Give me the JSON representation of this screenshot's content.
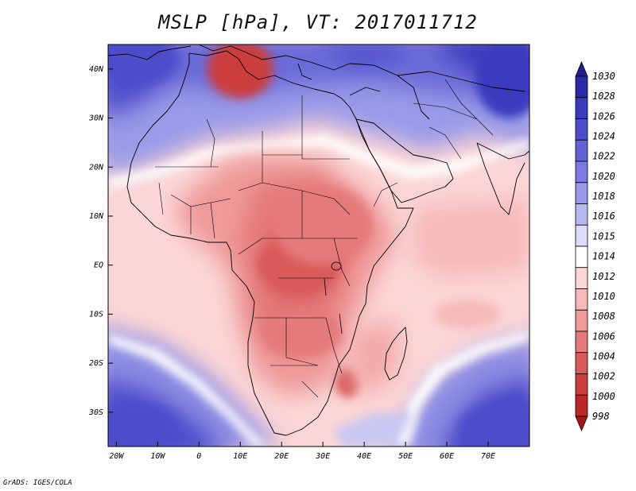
{
  "title": "MSLP [hPa], VT: 2017011712",
  "credit": "GrADS: IGES/COLA",
  "map": {
    "lon_range": [
      -22,
      80
    ],
    "lat_range": [
      -37,
      45
    ],
    "lat_ticks": [
      {
        "value": 40,
        "label": "40N"
      },
      {
        "value": 30,
        "label": "30N"
      },
      {
        "value": 20,
        "label": "20N"
      },
      {
        "value": 10,
        "label": "10N"
      },
      {
        "value": 0,
        "label": "EQ"
      },
      {
        "value": -10,
        "label": "10S"
      },
      {
        "value": -20,
        "label": "20S"
      },
      {
        "value": -30,
        "label": "30S"
      }
    ],
    "lon_ticks": [
      {
        "value": -20,
        "label": "20W"
      },
      {
        "value": -10,
        "label": "10W"
      },
      {
        "value": 0,
        "label": "0"
      },
      {
        "value": 10,
        "label": "10E"
      },
      {
        "value": 20,
        "label": "20E"
      },
      {
        "value": 30,
        "label": "30E"
      },
      {
        "value": 40,
        "label": "40E"
      },
      {
        "value": 50,
        "label": "50E"
      },
      {
        "value": 60,
        "label": "60E"
      },
      {
        "value": 70,
        "label": "70E"
      }
    ]
  },
  "colorbar": {
    "levels": [
      {
        "label": "1030",
        "color": "#1e1e8c"
      },
      {
        "label": "1028",
        "color": "#2a2aa8"
      },
      {
        "label": "1026",
        "color": "#3a3abf"
      },
      {
        "label": "1024",
        "color": "#4d4dcc"
      },
      {
        "label": "1022",
        "color": "#6363d6"
      },
      {
        "label": "1020",
        "color": "#7a7ae0"
      },
      {
        "label": "1018",
        "color": "#9797e8"
      },
      {
        "label": "1016",
        "color": "#b8b8f0"
      },
      {
        "label": "1015",
        "color": "#dcdcf8"
      },
      {
        "label": "1014",
        "color": "#ffffff"
      },
      {
        "label": "1012",
        "color": "#fbd6d6"
      },
      {
        "label": "1010",
        "color": "#f6b9b9"
      },
      {
        "label": "1008",
        "color": "#ef9a9a"
      },
      {
        "label": "1006",
        "color": "#e57a7a"
      },
      {
        "label": "1004",
        "color": "#d85a5a"
      },
      {
        "label": "1002",
        "color": "#cc3e3e"
      },
      {
        "label": "1000",
        "color": "#bb2828"
      },
      {
        "label": "998",
        "color": "#a51818"
      }
    ]
  },
  "pressure_centers": [
    {
      "lon": 10,
      "lat": 40,
      "value": 1002,
      "extent_lon": 8,
      "extent_lat": 6
    },
    {
      "lon": 24,
      "lat": 0,
      "value": 1004,
      "extent_lon": 10,
      "extent_lat": 6
    },
    {
      "lon": 36,
      "lat": -24,
      "value": 1004,
      "extent_lon": 3,
      "extent_lat": 3
    },
    {
      "lon": 25,
      "lat": -14,
      "value": 1006,
      "extent_lon": 10,
      "extent_lat": 5
    },
    {
      "lon": 30,
      "lat": 8,
      "value": 1006,
      "extent_lon": 12,
      "extent_lat": 8
    },
    {
      "lon": 65,
      "lat": -10,
      "value": 1010,
      "extent_lon": 8,
      "extent_lat": 3
    },
    {
      "lon": -15,
      "lat": 42,
      "value": 1024,
      "extent_lon": 10,
      "extent_lat": 5
    },
    {
      "lon": 75,
      "lat": 38,
      "value": 1026,
      "extent_lon": 8,
      "extent_lat": 8
    },
    {
      "lon": 75,
      "lat": -33,
      "value": 1024,
      "extent_lon": 12,
      "extent_lat": 5
    },
    {
      "lon": -15,
      "lat": -33,
      "value": 1024,
      "extent_lon": 10,
      "extent_lat": 5
    }
  ]
}
